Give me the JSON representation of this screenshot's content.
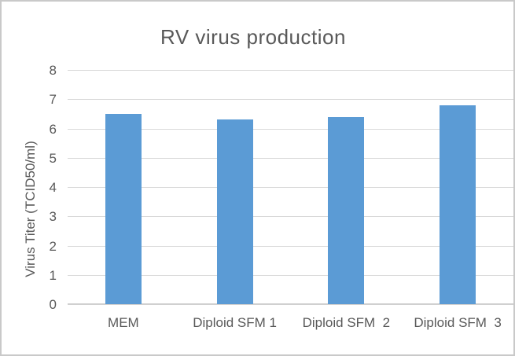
{
  "chart_data": {
    "type": "bar",
    "title": "RV virus production",
    "ylabel": "Virus Titer (TCID50/ml)",
    "xlabel": "",
    "categories": [
      "MEM",
      "Diploid SFM 1",
      "Diploid SFM  2",
      "Diploid SFM  3"
    ],
    "values": [
      6.5,
      6.3,
      6.4,
      6.8
    ],
    "ylim": [
      0,
      8
    ],
    "yticks": [
      0,
      1,
      2,
      3,
      4,
      5,
      6,
      7,
      8
    ],
    "grid": true,
    "legend_position": "none",
    "bar_color": "#5b9bd5",
    "gridline_color": "#d9d9d9",
    "axis_line_color": "#d0d0d0",
    "text_color": "#595959",
    "background_color": "#ffffff",
    "border_color": "#c9c9c9"
  }
}
